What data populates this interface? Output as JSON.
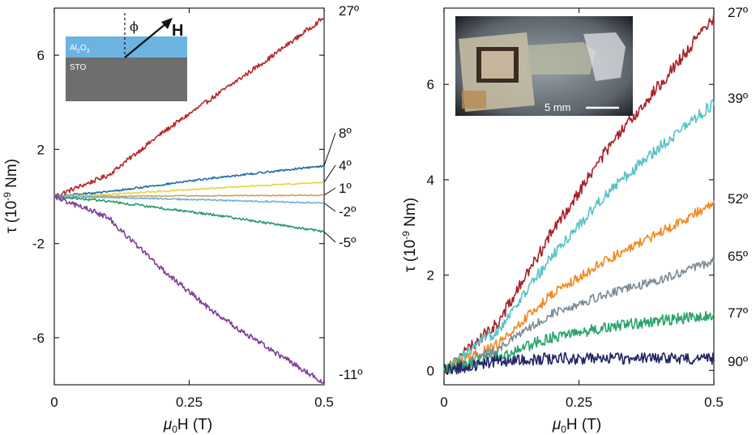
{
  "chart_data": [
    {
      "type": "line",
      "panel": "left",
      "xlabel": "μ0H (T)",
      "ylabel": "τ (10-9 Nm)",
      "xlim": [
        0,
        0.5
      ],
      "ylim": [
        -8,
        8
      ],
      "xticks": [
        "0",
        "0.25",
        "0.5"
      ],
      "yticks": [
        "6",
        "2",
        "-2",
        "-6"
      ],
      "grid": false,
      "x": [
        0,
        0.1,
        0.2,
        0.3,
        0.4,
        0.5
      ],
      "series": [
        {
          "name": "27º",
          "color": "#b5282b",
          "values": [
            0,
            0.9,
            2.7,
            4.3,
            5.9,
            7.6
          ]
        },
        {
          "name": "8º",
          "color": "#1f6ea6",
          "values": [
            0,
            0.2,
            0.5,
            0.8,
            1.05,
            1.3
          ]
        },
        {
          "name": "4º",
          "color": "#e3d64a",
          "values": [
            0,
            0.08,
            0.22,
            0.36,
            0.48,
            0.6
          ]
        },
        {
          "name": "1º",
          "color": "#c9a464",
          "values": [
            0,
            0.01,
            0.02,
            0.03,
            0.04,
            0.05
          ]
        },
        {
          "name": "-2º",
          "color": "#6fb0de",
          "values": [
            0,
            -0.04,
            -0.1,
            -0.16,
            -0.22,
            -0.28
          ]
        },
        {
          "name": "-5º",
          "color": "#279b6b",
          "values": [
            0,
            -0.2,
            -0.5,
            -0.8,
            -1.15,
            -1.5
          ]
        },
        {
          "name": "-11º",
          "color": "#7f3e98",
          "values": [
            0,
            -0.9,
            -3.1,
            -5.0,
            -6.5,
            -7.9
          ]
        }
      ],
      "inset": {
        "labels": [
          "ϕ",
          "H",
          "Al2O3",
          "STO"
        ]
      }
    },
    {
      "type": "line",
      "panel": "right",
      "xlabel": "μ0H (T)",
      "ylabel": "τ (10-9 Nm)",
      "xlim": [
        0,
        0.5
      ],
      "ylim": [
        -0.3,
        7.6
      ],
      "xticks": [
        "0",
        "0.25",
        "0.5"
      ],
      "yticks": [
        "0",
        "2",
        "4",
        "6"
      ],
      "grid": false,
      "x": [
        0,
        0.1,
        0.2,
        0.3,
        0.4,
        0.5
      ],
      "series": [
        {
          "name": "27º",
          "color": "#a72329",
          "values": [
            0,
            1.0,
            2.9,
            4.6,
            6.0,
            7.4
          ]
        },
        {
          "name": "39º",
          "color": "#56c2c7",
          "values": [
            0,
            0.85,
            2.4,
            3.7,
            4.7,
            5.6
          ]
        },
        {
          "name": "52º",
          "color": "#f28a22",
          "values": [
            0,
            0.55,
            1.6,
            2.3,
            2.9,
            3.5
          ]
        },
        {
          "name": "65º",
          "color": "#7e8d98",
          "values": [
            0,
            0.45,
            1.2,
            1.6,
            1.9,
            2.3
          ]
        },
        {
          "name": "77º",
          "color": "#2aa46c",
          "values": [
            0,
            0.3,
            0.7,
            0.9,
            1.05,
            1.15
          ]
        },
        {
          "name": "90º",
          "color": "#242666",
          "values": [
            0,
            0.2,
            0.25,
            0.25,
            0.25,
            0.25
          ]
        }
      ],
      "inset": {
        "labels": [
          "5 mm"
        ]
      }
    }
  ]
}
